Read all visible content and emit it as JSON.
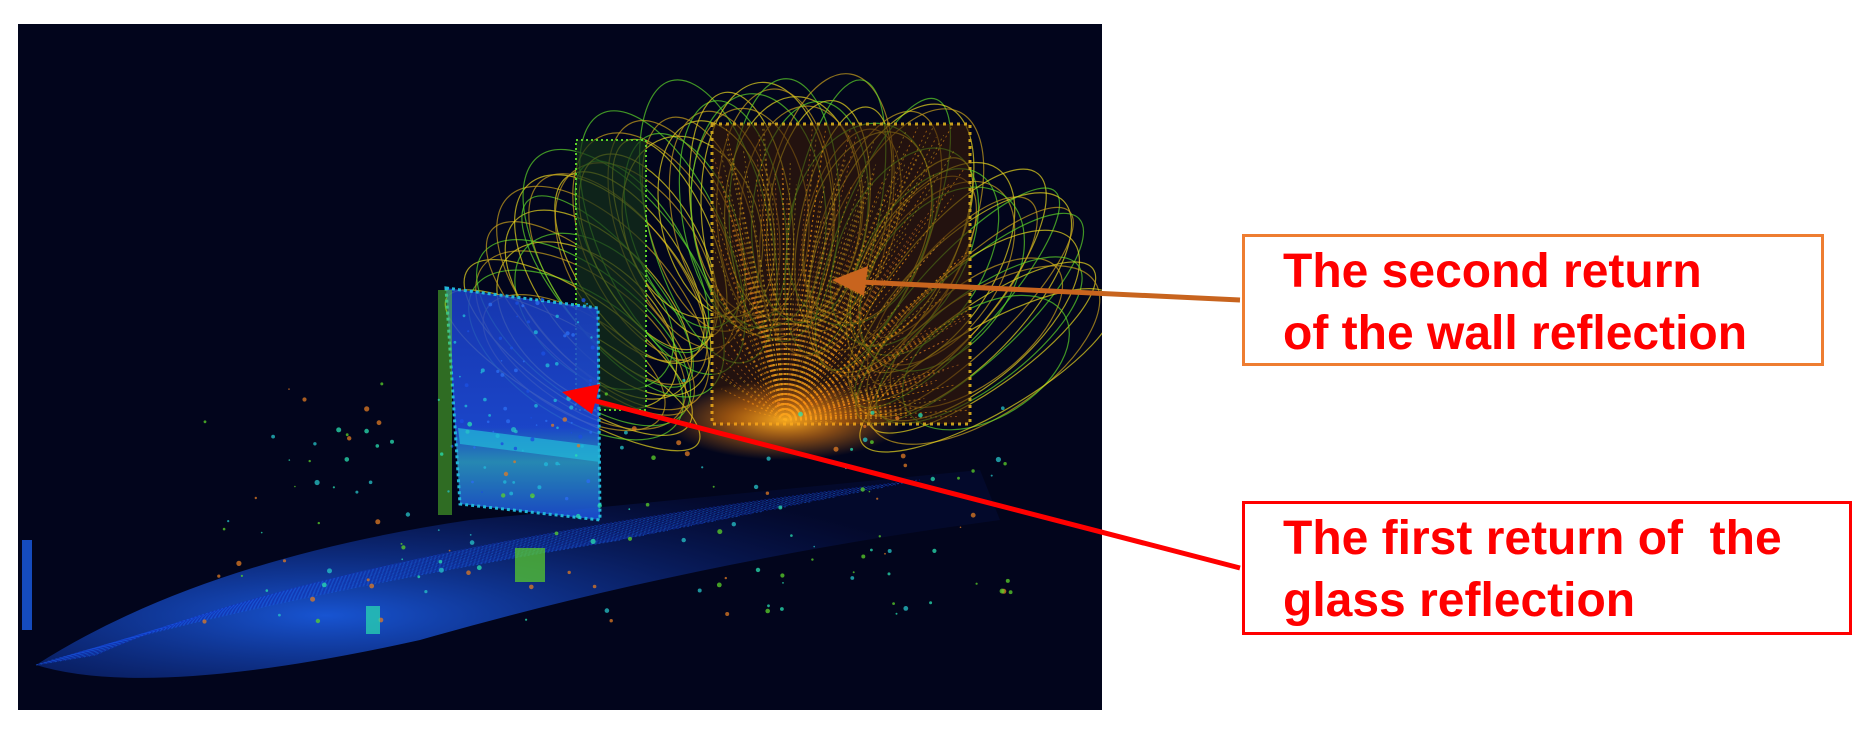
{
  "annotations": {
    "wall": {
      "lines": [
        "The second return",
        "of the wall reflection"
      ],
      "text_color": "#ff0000",
      "border_color": "#ee7d31",
      "arrow_color": "#c8641e"
    },
    "glass": {
      "lines": [
        "The first return of  the",
        "glass reflection"
      ],
      "text_color": "#ff0000",
      "border_color": "#ff0000",
      "arrow_color": "#ff0000"
    }
  },
  "point_cloud": {
    "background_color": "#02051c",
    "wall_colors": [
      "#e7d51f",
      "#c8a01c",
      "#e07b23",
      "#ff9a10"
    ],
    "glass_colors": [
      "#1c4fe0",
      "#2a6bf0",
      "#22b6d8"
    ],
    "ground_colors": [
      "#1232b8",
      "#1a5de6",
      "#27c4c8"
    ],
    "accent_colors": [
      "#5bd32a",
      "#2ae0b0"
    ]
  }
}
